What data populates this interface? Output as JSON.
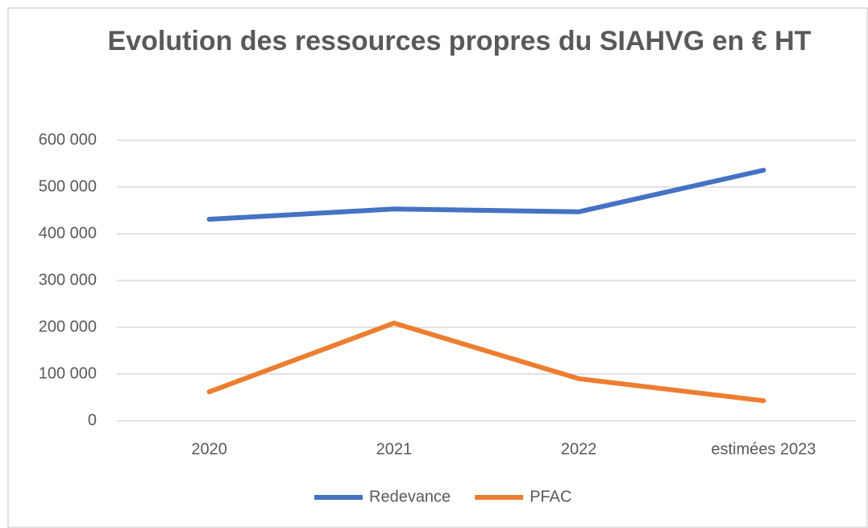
{
  "chart_data": {
    "type": "line",
    "title": "Evolution des ressources propres du SIAHVG en € HT",
    "categories": [
      "2020",
      "2021",
      "2022",
      "estimées 2023"
    ],
    "series": [
      {
        "name": "Redevance",
        "color": "#4472c4",
        "values": [
          431000,
          453000,
          447000,
          536000
        ]
      },
      {
        "name": "PFAC",
        "color": "#ed7d31",
        "values": [
          62000,
          209000,
          90000,
          43000
        ]
      }
    ],
    "ylim": [
      0,
      600000
    ],
    "yticks": [
      0,
      {
        "value": 100000,
        "label": "100 000"
      },
      {
        "value": 200000,
        "label": "200 000"
      },
      {
        "value": 300000,
        "label": "300 000"
      },
      {
        "value": 400000,
        "label": "400 000"
      },
      {
        "value": 500000,
        "label": "500 000"
      },
      {
        "value": 600000,
        "label": "600 000"
      }
    ],
    "grid": true,
    "legend": "bottom"
  }
}
